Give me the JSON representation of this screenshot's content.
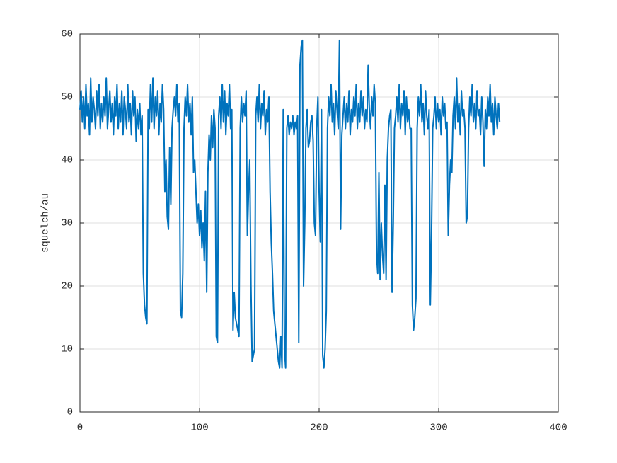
{
  "chart_data": {
    "type": "line",
    "ylabel": "squelch/au",
    "xlim": [
      0,
      400
    ],
    "ylim": [
      0,
      60
    ],
    "xticks": [
      0,
      100,
      200,
      300,
      400
    ],
    "yticks": [
      0,
      10,
      20,
      30,
      40,
      50,
      60
    ],
    "grid": true,
    "x": [
      0,
      1,
      2,
      3,
      4,
      5,
      6,
      7,
      8,
      9,
      10,
      11,
      12,
      13,
      14,
      15,
      16,
      17,
      18,
      19,
      20,
      21,
      22,
      23,
      24,
      25,
      26,
      27,
      28,
      29,
      30,
      31,
      32,
      33,
      34,
      35,
      36,
      37,
      38,
      39,
      40,
      41,
      42,
      43,
      44,
      45,
      46,
      47,
      48,
      49,
      50,
      51,
      52,
      53,
      54,
      55,
      56,
      57,
      58,
      59,
      60,
      61,
      62,
      63,
      64,
      65,
      66,
      67,
      68,
      69,
      70,
      71,
      72,
      73,
      74,
      75,
      76,
      77,
      78,
      79,
      80,
      81,
      82,
      83,
      84,
      85,
      86,
      87,
      88,
      89,
      90,
      91,
      92,
      93,
      94,
      95,
      96,
      97,
      98,
      99,
      100,
      101,
      102,
      103,
      104,
      105,
      106,
      107,
      108,
      109,
      110,
      111,
      112,
      113,
      114,
      115,
      116,
      117,
      118,
      119,
      120,
      121,
      122,
      123,
      124,
      125,
      126,
      127,
      128,
      129,
      130,
      131,
      132,
      133,
      134,
      135,
      136,
      137,
      138,
      139,
      140,
      141,
      142,
      143,
      144,
      145,
      146,
      147,
      148,
      149,
      150,
      151,
      152,
      153,
      154,
      155,
      156,
      157,
      158,
      159,
      160,
      161,
      162,
      163,
      164,
      165,
      166,
      167,
      168,
      169,
      170,
      171,
      172,
      173,
      174,
      175,
      176,
      177,
      178,
      179,
      180,
      181,
      182,
      183,
      184,
      185,
      186,
      187,
      188,
      189,
      190,
      191,
      192,
      193,
      194,
      195,
      196,
      197,
      198,
      199,
      200,
      201,
      202,
      203,
      204,
      205,
      206,
      207,
      208,
      209,
      210,
      211,
      212,
      213,
      214,
      215,
      216,
      217,
      218,
      219,
      220,
      221,
      222,
      223,
      224,
      225,
      226,
      227,
      228,
      229,
      230,
      231,
      232,
      233,
      234,
      235,
      236,
      237,
      238,
      239,
      240,
      241,
      242,
      243,
      244,
      245,
      246,
      247,
      248,
      249,
      250,
      251,
      252,
      253,
      254,
      255,
      256,
      257,
      258,
      259,
      260,
      261,
      262,
      263,
      264,
      265,
      266,
      267,
      268,
      269,
      270,
      271,
      272,
      273,
      274,
      275,
      276,
      277,
      278,
      279,
      280,
      281,
      282,
      283,
      284,
      285,
      286,
      287,
      288,
      289,
      290,
      291,
      292,
      293,
      294,
      295,
      296,
      297,
      298,
      299,
      300,
      301,
      302,
      303,
      304,
      305,
      306,
      307,
      308,
      309,
      310,
      311,
      312,
      313,
      314,
      315,
      316,
      317,
      318,
      319,
      320,
      321,
      322,
      323,
      324,
      325,
      326,
      327,
      328,
      329,
      330,
      331,
      332,
      333,
      334,
      335,
      336,
      337,
      338,
      339,
      340,
      341,
      342,
      343,
      344,
      345,
      346,
      347,
      348,
      349,
      350,
      351
    ],
    "series": [
      {
        "color": "#0072bd",
        "values": [
          48,
          51,
          46,
          50,
          45,
          52,
          47,
          49,
          44,
          53,
          46,
          50,
          48,
          45,
          51,
          47,
          52,
          45,
          49,
          46,
          50,
          47,
          53,
          45,
          48,
          51,
          46,
          49,
          44,
          50,
          47,
          52,
          45,
          49,
          46,
          51,
          44,
          50,
          48,
          45,
          52,
          46,
          49,
          44,
          51,
          47,
          50,
          43,
          48,
          45,
          49,
          44,
          47,
          22,
          17,
          15,
          14,
          48,
          45,
          52,
          46,
          53,
          45,
          50,
          47,
          51,
          44,
          49,
          46,
          52,
          48,
          35,
          40,
          31,
          29,
          42,
          33,
          45,
          48,
          50,
          47,
          52,
          46,
          49,
          16,
          15,
          22,
          45,
          50,
          47,
          52,
          46,
          49,
          44,
          50,
          38,
          40,
          35,
          30,
          33,
          28,
          32,
          26,
          30,
          24,
          35,
          19,
          38,
          44,
          40,
          47,
          42,
          48,
          45,
          12,
          11,
          47,
          50,
          45,
          52,
          46,
          51,
          44,
          49,
          47,
          52,
          45,
          48,
          13,
          19,
          15,
          14,
          13,
          12,
          45,
          50,
          46,
          49,
          47,
          51,
          28,
          35,
          40,
          20,
          8,
          9,
          10,
          47,
          50,
          46,
          52,
          45,
          49,
          47,
          51,
          44,
          48,
          46,
          50,
          35,
          27,
          22,
          16,
          14,
          12,
          10,
          8,
          7,
          12,
          7,
          48,
          10,
          7,
          45,
          47,
          44,
          46,
          45,
          47,
          44,
          46,
          45,
          47,
          11,
          55,
          58,
          59,
          20,
          30,
          45,
          48,
          42,
          43,
          46,
          47,
          43,
          30,
          28,
          45,
          50,
          35,
          27,
          48,
          9,
          7,
          10,
          16,
          45,
          50,
          47,
          52,
          46,
          49,
          44,
          51,
          48,
          45,
          59,
          29,
          44,
          47,
          50,
          45,
          49,
          46,
          51,
          44,
          48,
          46,
          50,
          47,
          52,
          45,
          49,
          46,
          51,
          47,
          50,
          45,
          48,
          46,
          55,
          48,
          45,
          50,
          47,
          52,
          49,
          25,
          22,
          38,
          21,
          30,
          25,
          22,
          36,
          21,
          40,
          45,
          47,
          48,
          19,
          30,
          45,
          47,
          50,
          46,
          52,
          45,
          49,
          47,
          51,
          44,
          50,
          46,
          48,
          45,
          45,
          17,
          13,
          15,
          18,
          45,
          50,
          47,
          52,
          46,
          49,
          44,
          51,
          47,
          45,
          48,
          17,
          28,
          45,
          47,
          50,
          45,
          49,
          46,
          48,
          44,
          50,
          47,
          49,
          45,
          46,
          28,
          36,
          40,
          38,
          47,
          50,
          45,
          53,
          46,
          49,
          44,
          51,
          47,
          48,
          45,
          30,
          31,
          45,
          50,
          47,
          52,
          46,
          49,
          45,
          51,
          47,
          48,
          44,
          50,
          46,
          39,
          48,
          45,
          50,
          47,
          52,
          46,
          49,
          44,
          50,
          47,
          45,
          49,
          46
        ]
      }
    ]
  }
}
